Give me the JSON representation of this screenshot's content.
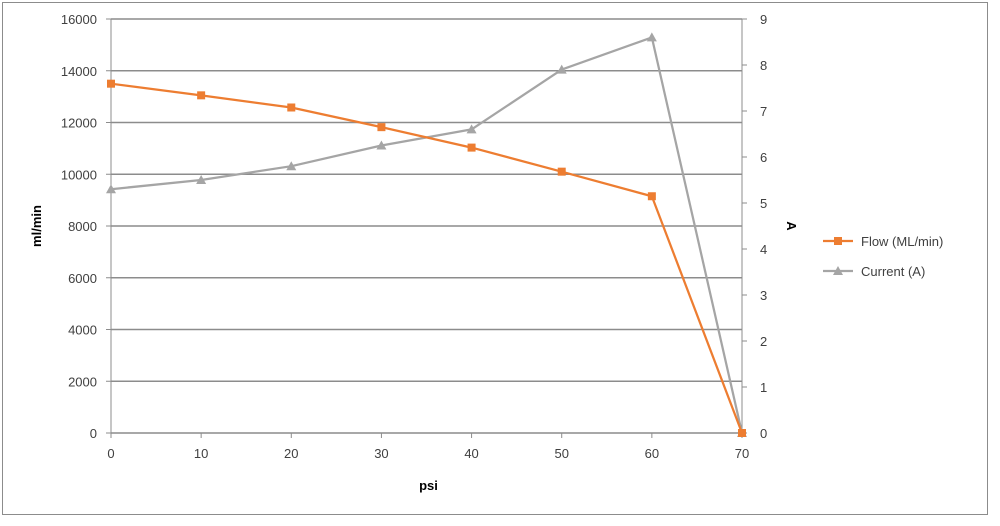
{
  "chart_data": {
    "type": "line",
    "title": "",
    "xlabel": "psi",
    "ylabel": "ml/min",
    "y2label": "A",
    "x": [
      0,
      10,
      20,
      30,
      40,
      50,
      60,
      70
    ],
    "xlim": [
      0,
      70
    ],
    "xticks": [
      0,
      10,
      20,
      30,
      40,
      50,
      60,
      70
    ],
    "ylim": [
      0,
      16000
    ],
    "yticks": [
      0,
      2000,
      4000,
      6000,
      8000,
      10000,
      12000,
      14000,
      16000
    ],
    "y2lim": [
      0,
      9
    ],
    "y2ticks": [
      0,
      1,
      2,
      3,
      4,
      5,
      6,
      7,
      8,
      9
    ],
    "grid": true,
    "legend_position": "right",
    "series": [
      {
        "name": "Flow (ML/min)",
        "axis": "left",
        "color": "#ed7d31",
        "marker": "square",
        "values": [
          13500,
          13050,
          12580,
          11820,
          11030,
          10100,
          9150,
          0
        ]
      },
      {
        "name": "Current (A)",
        "axis": "right",
        "color": "#a5a5a5",
        "marker": "triangle",
        "values": [
          5.3,
          5.5,
          5.8,
          6.25,
          6.6,
          7.9,
          8.6,
          0
        ]
      }
    ]
  }
}
